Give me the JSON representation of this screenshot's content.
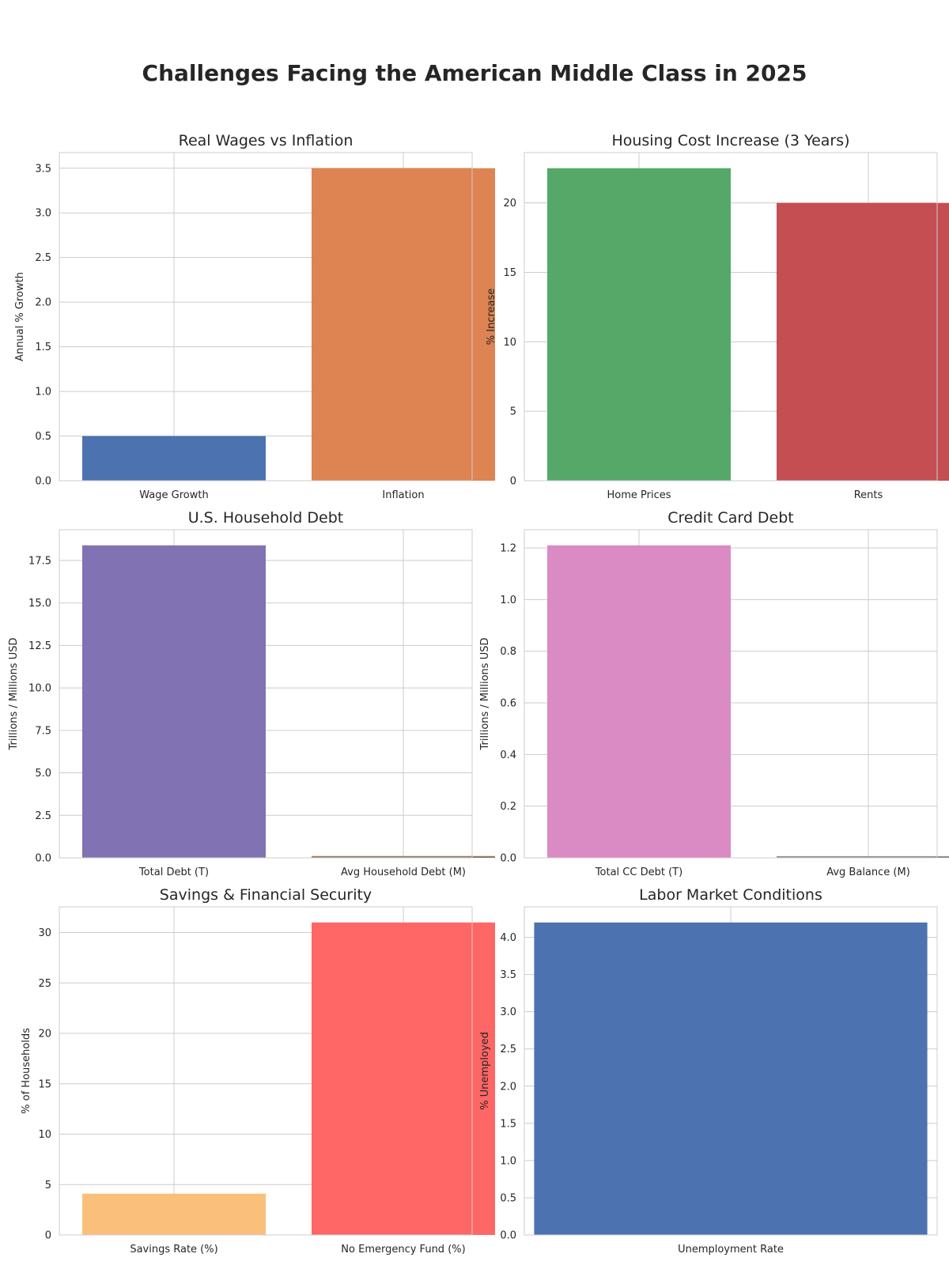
{
  "chart_data": {
    "title": "Challenges Facing the American Middle Class in 2025",
    "panels": [
      {
        "type": "bar",
        "title": "Real Wages vs Inflation",
        "categories": [
          "Wage Growth",
          "Inflation"
        ],
        "values": [
          0.5,
          3.5
        ],
        "colors": [
          "#4c72b0",
          "#dd8452"
        ],
        "ylabel": "Annual % Growth",
        "ylim": [
          0,
          3.675
        ],
        "yticks": [
          0.0,
          0.5,
          1.0,
          1.5,
          2.0,
          2.5,
          3.0,
          3.5
        ],
        "ytick_labels": [
          "0.0",
          "0.5",
          "1.0",
          "1.5",
          "2.0",
          "2.5",
          "3.0",
          "3.5"
        ],
        "grid": true
      },
      {
        "type": "bar",
        "title": "Housing Cost Increase (3 Years)",
        "categories": [
          "Home Prices",
          "Rents"
        ],
        "values": [
          22.5,
          20
        ],
        "colors": [
          "#55a868",
          "#c44e52"
        ],
        "ylabel": "% Increase",
        "ylim": [
          0,
          23.625
        ],
        "yticks": [
          0,
          5,
          10,
          15,
          20
        ],
        "ytick_labels": [
          "0",
          "5",
          "10",
          "15",
          "20"
        ],
        "grid": true
      },
      {
        "type": "bar",
        "title": "U.S. Household Debt",
        "categories": [
          "Total Debt (T)",
          "Avg Household Debt (M)"
        ],
        "values": [
          18.39,
          0.105
        ],
        "colors": [
          "#8172b3",
          "#937860"
        ],
        "ylabel": "Trillions / Millions USD",
        "ylim": [
          0,
          19.31
        ],
        "yticks": [
          0.0,
          2.5,
          5.0,
          7.5,
          10.0,
          12.5,
          15.0,
          17.5
        ],
        "ytick_labels": [
          "0.0",
          "2.5",
          "5.0",
          "7.5",
          "10.0",
          "12.5",
          "15.0",
          "17.5"
        ],
        "grid": true
      },
      {
        "type": "bar",
        "title": "Credit Card Debt",
        "categories": [
          "Total CC Debt (T)",
          "Avg Balance (M)"
        ],
        "values": [
          1.21,
          0.0065
        ],
        "colors": [
          "#da8bc3",
          "#8c8c8c"
        ],
        "ylabel": "Trillions / Millions USD",
        "ylim": [
          0,
          1.2705
        ],
        "yticks": [
          0.0,
          0.2,
          0.4,
          0.6,
          0.8,
          1.0,
          1.2
        ],
        "ytick_labels": [
          "0.0",
          "0.2",
          "0.4",
          "0.6",
          "0.8",
          "1.0",
          "1.2"
        ],
        "grid": true
      },
      {
        "type": "bar",
        "title": "Savings & Financial Security",
        "categories": [
          "Savings Rate (%)",
          "No Emergency Fund (%)"
        ],
        "values": [
          4.1,
          31
        ],
        "colors": [
          "#fbbf7c",
          "#ff6666"
        ],
        "ylabel": "% of Households",
        "ylim": [
          0,
          32.55
        ],
        "yticks": [
          0,
          5,
          10,
          15,
          20,
          25,
          30
        ],
        "ytick_labels": [
          "0",
          "5",
          "10",
          "15",
          "20",
          "25",
          "30"
        ],
        "grid": true
      },
      {
        "type": "bar",
        "title": "Labor Market Conditions",
        "categories": [
          "Unemployment Rate"
        ],
        "values": [
          4.2
        ],
        "colors": [
          "#4c72b0"
        ],
        "ylabel": "% Unemployed",
        "ylim": [
          0,
          4.41
        ],
        "yticks": [
          0.0,
          0.5,
          1.0,
          1.5,
          2.0,
          2.5,
          3.0,
          3.5,
          4.0
        ],
        "ytick_labels": [
          "0.0",
          "0.5",
          "1.0",
          "1.5",
          "2.0",
          "2.5",
          "3.0",
          "3.5",
          "4.0"
        ],
        "grid": true
      }
    ]
  }
}
